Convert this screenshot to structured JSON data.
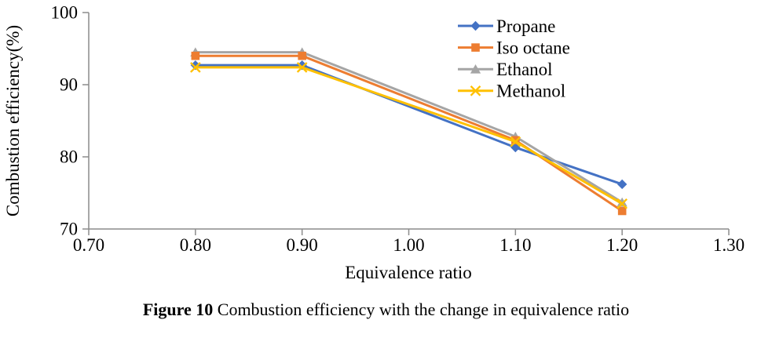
{
  "chart_data": {
    "type": "line",
    "title": "",
    "xlabel": "Equivalence ratio",
    "ylabel": "Combustion efficiency(%)",
    "x": [
      0.8,
      0.9,
      1.1,
      1.2
    ],
    "xlim": [
      0.7,
      1.3
    ],
    "ylim": [
      70,
      100
    ],
    "x_tick_values": [
      0.7,
      0.8,
      0.9,
      1.0,
      1.1,
      1.2,
      1.3
    ],
    "x_tick_labels": [
      "0.70",
      "0.80",
      "0.90",
      "1.00",
      "1.10",
      "1.20",
      "1.30"
    ],
    "y_tick_values": [
      70,
      80,
      90,
      100
    ],
    "y_tick_labels": [
      "70",
      "80",
      "90",
      "100"
    ],
    "grid": false,
    "legend_position": "top-right",
    "series": [
      {
        "name": "Propane",
        "color": "#4472C4",
        "marker": "diamond",
        "values": [
          92.7,
          92.7,
          81.3,
          76.2
        ]
      },
      {
        "name": "Iso octane",
        "color": "#ED7D31",
        "marker": "square",
        "values": [
          94.0,
          94.0,
          82.3,
          72.5
        ]
      },
      {
        "name": "Ethanol",
        "color": "#A5A5A5",
        "marker": "triangle",
        "values": [
          94.5,
          94.5,
          82.8,
          73.7
        ]
      },
      {
        "name": "Methanol",
        "color": "#FFC000",
        "marker": "x",
        "values": [
          92.4,
          92.4,
          82.1,
          73.5
        ]
      }
    ],
    "draw_order": [
      0,
      2,
      1,
      3
    ]
  },
  "caption": {
    "label": "Figure 10",
    "text": "Combustion efficiency with the change in equivalence ratio"
  },
  "colors": {
    "axis": "#8C8C8C",
    "tick_text": "#000000",
    "background": "#ffffff"
  }
}
